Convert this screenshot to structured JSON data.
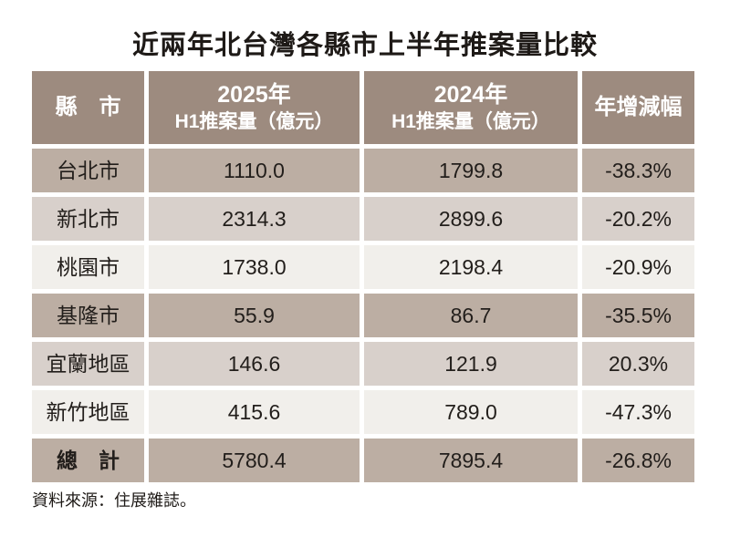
{
  "title": "近兩年北台灣各縣市上半年推案量比較",
  "header": {
    "col_city": "縣　市",
    "col_2025_line1": "2025年",
    "col_2025_line2": "H1推案量（億元）",
    "col_2024_line1": "2024年",
    "col_2024_line2": "H1推案量（億元）",
    "col_yoy": "年增減幅"
  },
  "table": {
    "rows": [
      {
        "name": "台北市",
        "v2025": "1110.0",
        "v2024": "1799.8",
        "yoy": "-38.3%"
      },
      {
        "name": "新北市",
        "v2025": "2314.3",
        "v2024": "2899.6",
        "yoy": "-20.2%"
      },
      {
        "name": "桃園市",
        "v2025": "1738.0",
        "v2024": "2198.4",
        "yoy": "-20.9%"
      },
      {
        "name": "基隆市",
        "v2025": "55.9",
        "v2024": "86.7",
        "yoy": "-35.5%"
      },
      {
        "name": "宜蘭地區",
        "v2025": "146.6",
        "v2024": "121.9",
        "yoy": "20.3%"
      },
      {
        "name": "新竹地區",
        "v2025": "415.6",
        "v2024": "789.0",
        "yoy": "-47.3%"
      }
    ],
    "total": {
      "name": "總　計",
      "v2025": "5780.4",
      "v2024": "7895.4",
      "yoy": "-26.8%"
    }
  },
  "footer": {
    "source": "資料來源：住展雜誌。"
  },
  "colors": {
    "header_bg": "#9d8b7f",
    "row_dark_bg": "#bcaea3",
    "row_mid_bg": "#d8d0cb",
    "row_light_bg": "#f1efeb",
    "header_text": "#ffffff",
    "body_text": "#221e1b",
    "page_bg": "#ffffff"
  },
  "chart_data": {
    "type": "table",
    "title": "近兩年北台灣各縣市上半年推案量比較",
    "columns": [
      "縣市",
      "2025年H1推案量（億元）",
      "2024年H1推案量（億元）",
      "年增減幅"
    ],
    "rows": [
      [
        "台北市",
        1110.0,
        1799.8,
        "-38.3%"
      ],
      [
        "新北市",
        2314.3,
        2899.6,
        "-20.2%"
      ],
      [
        "桃園市",
        1738.0,
        2198.4,
        "-20.9%"
      ],
      [
        "基隆市",
        55.9,
        86.7,
        "-35.5%"
      ],
      [
        "宜蘭地區",
        146.6,
        121.9,
        "20.3%"
      ],
      [
        "新竹地區",
        415.6,
        789.0,
        "-47.3%"
      ],
      [
        "總計",
        5780.4,
        7895.4,
        "-26.8%"
      ]
    ],
    "source": "住展雜誌"
  }
}
